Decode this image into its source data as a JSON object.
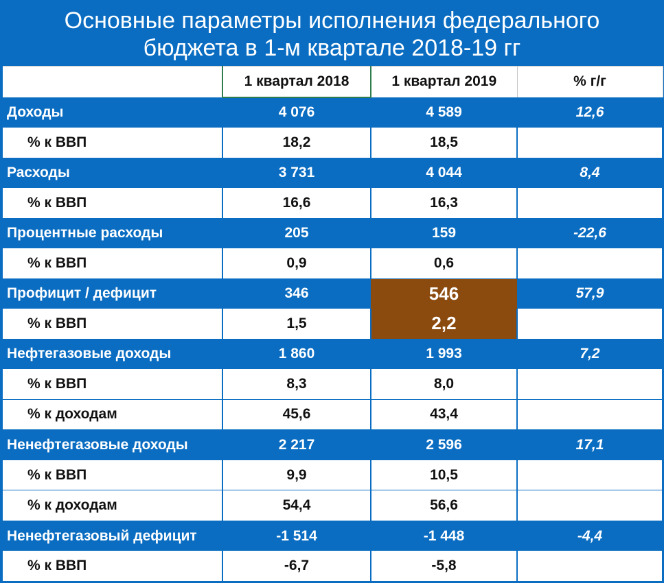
{
  "title": {
    "line1": "Основные параметры исполнения федерального",
    "line2": "бюджета в 1-м квартале 2018-19 гг"
  },
  "colors": {
    "header_bg": "#0a6dc2",
    "highlight": "#8b4a0e"
  },
  "table": {
    "headers": [
      "",
      "1 квартал 2018",
      "1 квартал 2019",
      "% г/г"
    ],
    "rows": [
      {
        "label": "Доходы",
        "q2018": "4 076",
        "q2019": "4 589",
        "yoy": "12,6"
      },
      {
        "label": "% к ВВП",
        "q2018": "18,2",
        "q2019": "18,5",
        "yoy": ""
      },
      {
        "label": "Расходы",
        "q2018": "3 731",
        "q2019": "4 044",
        "yoy": "8,4"
      },
      {
        "label": "% к ВВП",
        "q2018": "16,6",
        "q2019": "16,3",
        "yoy": ""
      },
      {
        "label": "Процентные расходы",
        "q2018": "205",
        "q2019": "159",
        "yoy": "-22,6"
      },
      {
        "label": "% к ВВП",
        "q2018": "0,9",
        "q2019": "0,6",
        "yoy": ""
      },
      {
        "label": "Профицит / дефицит",
        "q2018": "346",
        "q2019": "546",
        "yoy": "57,9"
      },
      {
        "label": "% к ВВП",
        "q2018": "1,5",
        "q2019": "2,2",
        "yoy": ""
      },
      {
        "label": "Нефтегазовые доходы",
        "q2018": "1 860",
        "q2019": "1 993",
        "yoy": "7,2"
      },
      {
        "label": "% к ВВП",
        "q2018": "8,3",
        "q2019": "8,0",
        "yoy": ""
      },
      {
        "label": "% к доходам",
        "q2018": "45,6",
        "q2019": "43,4",
        "yoy": ""
      },
      {
        "label": "Ненефтегазовые доходы",
        "q2018": "2 217",
        "q2019": "2 596",
        "yoy": "17,1"
      },
      {
        "label": "% к ВВП",
        "q2018": "9,9",
        "q2019": "10,5",
        "yoy": ""
      },
      {
        "label": "% к доходам",
        "q2018": "54,4",
        "q2019": "56,6",
        "yoy": ""
      },
      {
        "label": "Ненефтегазовый дефицит",
        "q2018": "-1 514",
        "q2019": "-1 448",
        "yoy": "-4,4"
      },
      {
        "label": "% к ВВП",
        "q2018": "-6,7",
        "q2019": "-5,8",
        "yoy": ""
      }
    ]
  }
}
